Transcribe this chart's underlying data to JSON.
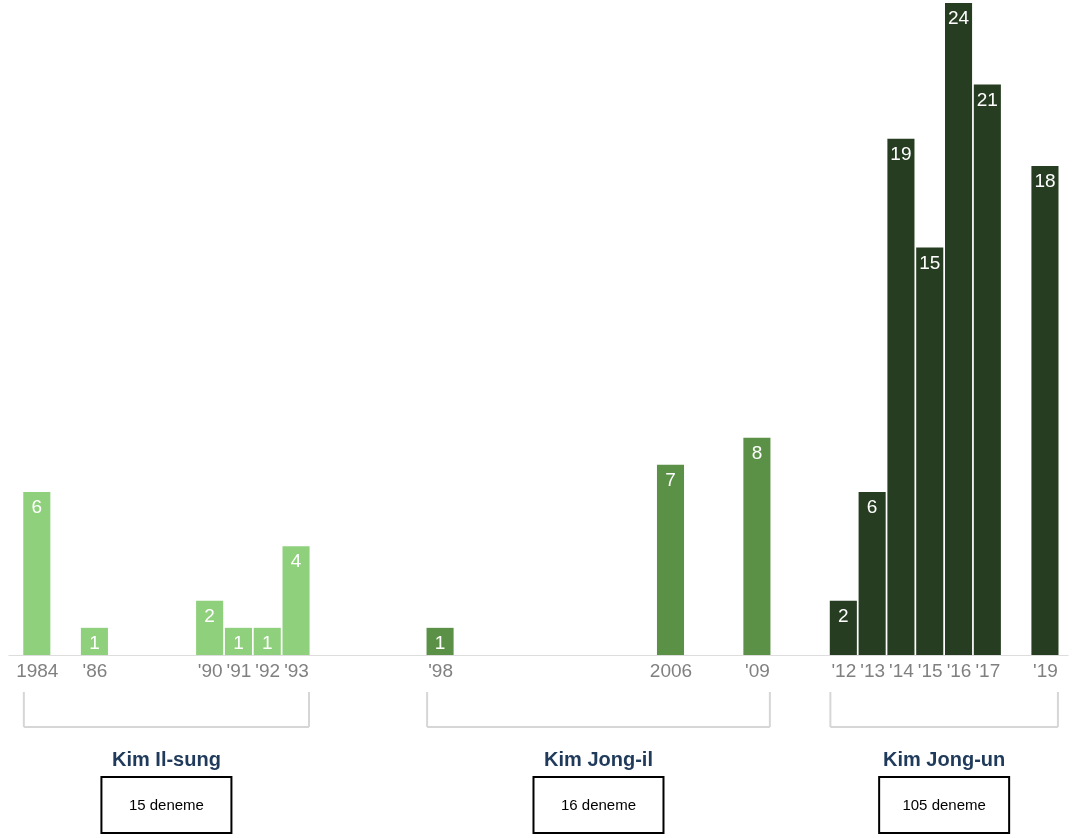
{
  "chart_data": {
    "type": "bar",
    "series": [
      {
        "color": "#8fd07c",
        "x": [
          1984,
          1986,
          1990,
          1991,
          1992,
          1993
        ],
        "values": [
          6,
          1,
          2,
          1,
          1,
          4
        ]
      },
      {
        "color": "#5b9146",
        "x": [
          1998,
          2006,
          2009
        ],
        "values": [
          1,
          7,
          8
        ]
      },
      {
        "color": "#263d21",
        "x": [
          2012,
          2013,
          2014,
          2015,
          2016,
          2017,
          2019
        ],
        "values": [
          2,
          6,
          19,
          15,
          24,
          21,
          18
        ]
      }
    ],
    "xlim": [
      1983,
      2019.8
    ],
    "xticks": [
      1984,
      {
        "value": 1986,
        "label": "'86"
      },
      {
        "value": 1990,
        "label": "'90"
      },
      {
        "value": 1991,
        "label": "'91"
      },
      {
        "value": 1992,
        "label": "'92"
      },
      {
        "value": 1993,
        "label": "'93"
      },
      {
        "value": 1998,
        "label": "'98"
      },
      2006,
      {
        "value": 2009,
        "label": "'09"
      },
      {
        "value": 2012,
        "label": "'12"
      },
      {
        "value": 2013,
        "label": "'13"
      },
      {
        "value": 2014,
        "label": "'14"
      },
      {
        "value": 2015,
        "label": "'15"
      },
      {
        "value": 2016,
        "label": "'16"
      },
      {
        "value": 2017,
        "label": "'17"
      },
      {
        "value": 2019,
        "label": "'19"
      }
    ],
    "ylim": [
      0,
      24
    ],
    "tick_labels": "x",
    "data_labels": true,
    "grid": false,
    "annotations": [
      "Kim Il-sung",
      "Kim Jong-il",
      "Kim Jong-un",
      "15 deneme",
      "16 deneme",
      "105 deneme"
    ]
  }
}
